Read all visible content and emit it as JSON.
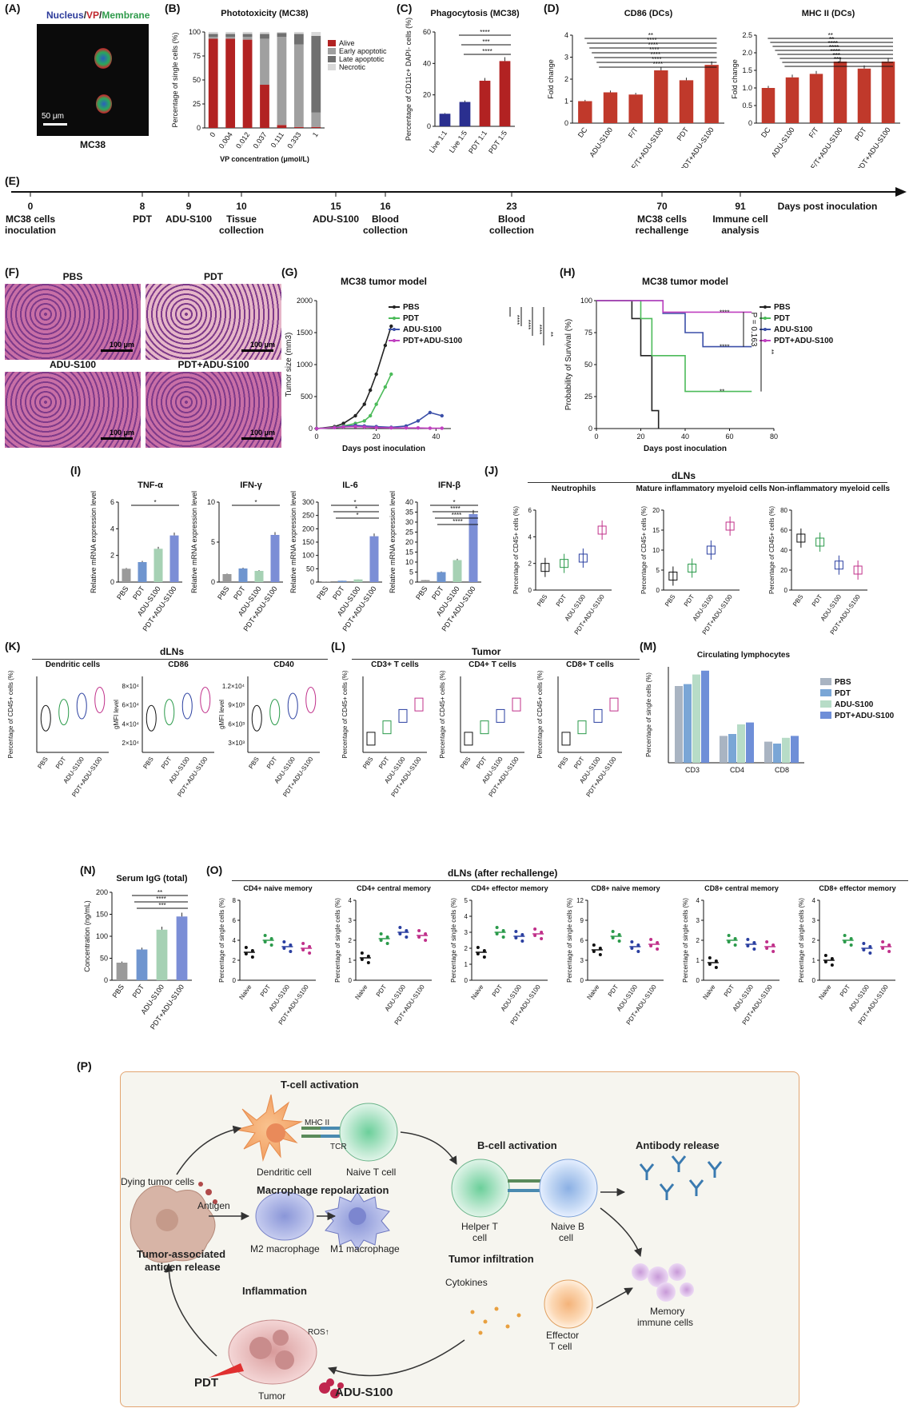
{
  "panels": {
    "A": "(A)",
    "B": "(B)",
    "C": "(C)",
    "D": "(D)",
    "E": "(E)",
    "F": "(F)",
    "G": "(G)",
    "H": "(H)",
    "I": "(I)",
    "J": "(J)",
    "K": "(K)",
    "L": "(L)",
    "M": "(M)",
    "N": "(N)",
    "O": "(O)",
    "P": "(P)"
  },
  "panelA": {
    "title_parts": [
      {
        "text": "Nucleus",
        "color": "#2b3a9a"
      },
      {
        "text": "/",
        "color": "#222"
      },
      {
        "text": "VP",
        "color": "#c0262d"
      },
      {
        "text": "/",
        "color": "#222"
      },
      {
        "text": "Membrane",
        "color": "#2e9a4a"
      }
    ],
    "scale": "50 μm",
    "caption": "MC38"
  },
  "chart_data": [
    {
      "id": "B",
      "type": "bar",
      "title": "Phototoxicity (MC38)",
      "xlabel": "VP concentration (μmol/L)",
      "ylabel": "Percentage of single cells (%)",
      "categories": [
        "0",
        "0.004",
        "0.012",
        "0.037",
        "0.111",
        "0.333",
        "1"
      ],
      "ylim": [
        0,
        100
      ],
      "yticks": [
        "0",
        "25",
        "50",
        "75",
        "100"
      ],
      "series": [
        {
          "name": "Alive",
          "color": "#b22222",
          "values": [
            93,
            93,
            92,
            45,
            3,
            1,
            1
          ]
        },
        {
          "name": "Early apoptotic",
          "color": "#a0a0a0",
          "values": [
            2,
            2,
            3,
            48,
            92,
            86,
            15
          ]
        },
        {
          "name": "Late apoptotic",
          "color": "#707070",
          "values": [
            3,
            3,
            3,
            5,
            4,
            11,
            80
          ]
        },
        {
          "name": "Necrotic",
          "color": "#d8d8d8",
          "values": [
            2,
            2,
            2,
            2,
            1,
            2,
            4
          ]
        }
      ]
    },
    {
      "id": "C",
      "type": "bar",
      "title": "Phagocytosis (MC38)",
      "ylabel": "Percentage of CD11c+ DAPI- cells (%)",
      "categories": [
        "Live 1:1",
        "Live 1:5",
        "PDT 1:1",
        "PDT 1:5"
      ],
      "values": [
        8,
        15.5,
        29,
        41.5
      ],
      "colors": [
        "#2a2f8f",
        "#2a2f8f",
        "#b22222",
        "#b22222"
      ],
      "ylim": [
        0,
        60
      ],
      "yticks": [
        "0",
        "20",
        "40",
        "60"
      ],
      "sig": [
        "****",
        "***",
        "****"
      ]
    },
    {
      "id": "D1",
      "type": "bar",
      "title": "CD86 (DCs)",
      "ylabel": "Fold change",
      "categories": [
        "DC",
        "ADU-S100",
        "F/T",
        "F/T+ADU-S100",
        "PDT",
        "PDT+ADU-S100"
      ],
      "values": [
        1.0,
        1.4,
        1.3,
        2.4,
        1.95,
        2.65
      ],
      "ylim": [
        0,
        4
      ],
      "yticks": [
        "0",
        "1",
        "2",
        "3",
        "4"
      ],
      "sig": [
        "**",
        "****",
        "****",
        "****",
        "****",
        "****",
        "****"
      ]
    },
    {
      "id": "D2",
      "type": "bar",
      "title": "MHC II (DCs)",
      "ylabel": "Fold change",
      "categories": [
        "DC",
        "ADU-S100",
        "F/T",
        "F/T+ADU-S100",
        "PDT",
        "PDT+ADU-S100"
      ],
      "values": [
        1.0,
        1.3,
        1.4,
        1.75,
        1.55,
        1.75
      ],
      "ylim": [
        0,
        2.5
      ],
      "yticks": [
        "0",
        "0.5",
        "1.0",
        "1.5",
        "2.0",
        "2.5"
      ],
      "sig": [
        "**",
        "**",
        "****",
        "****",
        "****",
        "***",
        "***",
        "*"
      ]
    },
    {
      "id": "G",
      "type": "line",
      "title": "MC38 tumor model",
      "xlabel": "Days post inoculation",
      "ylabel": "Tumor size (mm3)",
      "xlim": [
        0,
        45
      ],
      "ylim": [
        0,
        2000
      ],
      "xticks": [
        "0",
        "20",
        "40"
      ],
      "yticks": [
        "0",
        "500",
        "1000",
        "1500",
        "2000"
      ],
      "series": [
        {
          "name": "PBS",
          "color": "#222222",
          "x": [
            0,
            6,
            9,
            13,
            16,
            18,
            20,
            23,
            25
          ],
          "y": [
            0,
            30,
            80,
            200,
            380,
            600,
            850,
            1300,
            1600
          ]
        },
        {
          "name": "PDT",
          "color": "#4cbb5a",
          "x": [
            0,
            6,
            9,
            13,
            16,
            18,
            20,
            23,
            25
          ],
          "y": [
            0,
            20,
            40,
            80,
            120,
            200,
            380,
            650,
            850
          ]
        },
        {
          "name": "ADU-S100",
          "color": "#3b4fa8",
          "x": [
            0,
            6,
            9,
            13,
            16,
            20,
            25,
            30,
            34,
            38,
            42
          ],
          "y": [
            0,
            15,
            30,
            50,
            40,
            30,
            20,
            40,
            120,
            250,
            200
          ]
        },
        {
          "name": "PDT+ADU-S100",
          "color": "#c040c0",
          "x": [
            0,
            6,
            9,
            13,
            16,
            20,
            25,
            30,
            34,
            38,
            42
          ],
          "y": [
            0,
            15,
            25,
            30,
            25,
            15,
            10,
            10,
            10,
            5,
            5
          ]
        }
      ],
      "sig": [
        "****",
        "****",
        "****",
        "**"
      ]
    },
    {
      "id": "H",
      "type": "line",
      "title": "MC38 tumor model",
      "xlabel": "Days post inoculation",
      "ylabel": "Probability of Survival (%)",
      "xlim": [
        0,
        80
      ],
      "ylim": [
        0,
        100
      ],
      "xticks": [
        "0",
        "20",
        "40",
        "60",
        "80"
      ],
      "yticks": [
        "0",
        "25",
        "50",
        "75",
        "100"
      ],
      "series": [
        {
          "name": "PBS",
          "color": "#222222",
          "x": [
            0,
            16,
            16,
            20,
            20,
            25,
            25,
            28,
            28
          ],
          "y": [
            100,
            100,
            86,
            86,
            57,
            57,
            14,
            14,
            0
          ]
        },
        {
          "name": "PDT",
          "color": "#4cbb5a",
          "x": [
            0,
            20,
            20,
            25,
            25,
            40,
            40,
            70
          ],
          "y": [
            100,
            100,
            86,
            86,
            57,
            57,
            29,
            29
          ]
        },
        {
          "name": "ADU-S100",
          "color": "#3b4fa8",
          "x": [
            0,
            30,
            30,
            40,
            40,
            48,
            48,
            70
          ],
          "y": [
            100,
            100,
            90,
            90,
            75,
            75,
            64,
            64
          ]
        },
        {
          "name": "PDT+ADU-S100",
          "color": "#c040c0",
          "x": [
            0,
            30,
            30,
            70
          ],
          "y": [
            100,
            100,
            91,
            91
          ]
        }
      ],
      "annot": [
        "****",
        "****",
        "**",
        "P = 0.163",
        "**"
      ]
    },
    {
      "id": "I1",
      "type": "bar",
      "title": "TNF-α",
      "ylabel": "Relative mRNA expression level",
      "categories": [
        "PBS",
        "PDT",
        "ADU-S100",
        "PDT+ADU-S100"
      ],
      "values": [
        1.0,
        1.5,
        2.5,
        3.5
      ],
      "ylim": [
        0,
        6
      ],
      "yticks": [
        "0",
        "2",
        "4",
        "6"
      ],
      "sig": [
        "*"
      ]
    },
    {
      "id": "I2",
      "type": "bar",
      "title": "IFN-γ",
      "ylabel": "Relative mRNA expression level",
      "categories": [
        "PBS",
        "PDT",
        "ADU-S100",
        "PDT+ADU-S100"
      ],
      "values": [
        1.0,
        1.7,
        1.4,
        5.9
      ],
      "ylim": [
        0,
        10
      ],
      "yticks": [
        "0",
        "5",
        "10"
      ],
      "sig": [
        "*"
      ]
    },
    {
      "id": "I3",
      "type": "bar",
      "title": "IL-6",
      "ylabel": "Relative mRNA expression level",
      "categories": [
        "PBS",
        "PDT",
        "ADU-S100",
        "PDT+ADU-S100"
      ],
      "values": [
        2,
        5,
        10,
        172
      ],
      "ylim": [
        0,
        300
      ],
      "yticks": [
        "0",
        "50",
        "100",
        "150",
        "200",
        "250",
        "300"
      ],
      "sig": [
        "*",
        "*",
        "*"
      ]
    },
    {
      "id": "I4",
      "type": "bar",
      "title": "IFN-β",
      "ylabel": "Relative mRNA expression level",
      "categories": [
        "PBS",
        "PDT",
        "ADU-S100",
        "PDT+ADU-S100"
      ],
      "values": [
        1,
        5,
        11,
        34
      ],
      "ylim": [
        0,
        40
      ],
      "yticks": [
        "0",
        "5",
        "10",
        "15",
        "20",
        "25",
        "30",
        "35",
        "40"
      ],
      "sig": [
        "*",
        "****",
        "****",
        "****"
      ]
    },
    {
      "id": "N",
      "type": "bar",
      "title": "Serum IgG (total)",
      "ylabel": "Concentration (ng/mL)",
      "categories": [
        "PBS",
        "PDT",
        "ADU-S100",
        "PDT+ADU-S100"
      ],
      "values": [
        40,
        70,
        115,
        145
      ],
      "ylim": [
        0,
        200
      ],
      "yticks": [
        "0",
        "50",
        "100",
        "150",
        "200"
      ],
      "sig": [
        "**",
        "****",
        "***"
      ]
    }
  ],
  "panelE": {
    "axis_label": "Days post inoculation",
    "events": [
      {
        "day": "0",
        "label1": "MC38 cells",
        "label2": "inoculation"
      },
      {
        "day": "8",
        "label1": "PDT",
        "label2": ""
      },
      {
        "day": "9",
        "label1": "ADU-S100",
        "label2": ""
      },
      {
        "day": "10",
        "label1": "Tissue",
        "label2": "collection"
      },
      {
        "day": "15",
        "label1": "ADU-S100",
        "label2": ""
      },
      {
        "day": "16",
        "label1": "Blood",
        "label2": "collection"
      },
      {
        "day": "23",
        "label1": "Blood",
        "label2": "collection"
      },
      {
        "day": "70",
        "label1": "MC38 cells",
        "label2": "rechallenge"
      },
      {
        "day": "91",
        "label1": "Immune cell",
        "label2": "analysis"
      }
    ]
  },
  "panelF": {
    "tiles": [
      {
        "label": "PBS",
        "scale": "100 μm"
      },
      {
        "label": "PDT",
        "scale": "100 μm"
      },
      {
        "label": "ADU-S100",
        "scale": "100 μm"
      },
      {
        "label": "PDT+ADU-S100",
        "scale": "100 μm"
      }
    ]
  },
  "panelJ": {
    "header": "dLNs",
    "subs": [
      {
        "title": "Neutrophils",
        "ylabel": "Percentage of CD45+ cells (%)",
        "yticks": [
          "0",
          "2",
          "4",
          "6"
        ]
      },
      {
        "title": "Mature inflammatory myeloid cells",
        "ylabel": "Percentage of CD45+ cells (%)",
        "yticks": [
          "0",
          "5",
          "10",
          "15",
          "20"
        ]
      },
      {
        "title": "Non-inflammatory myeloid cells",
        "ylabel": "Percentage of CD45+ cells (%)",
        "yticks": [
          "0",
          "20",
          "40",
          "60",
          "80"
        ]
      }
    ]
  },
  "panelK": {
    "header": "dLNs",
    "subs": [
      {
        "title": "Dendritic cells",
        "ylabel": "Percentage of CD45+ cells (%)"
      },
      {
        "title": "CD86",
        "ylabel": "gMFI level",
        "yticks": [
          "2×10⁴",
          "4×10⁴",
          "6×10⁴",
          "8×10⁴"
        ]
      },
      {
        "title": "CD40",
        "ylabel": "gMFI level",
        "yticks": [
          "3×10³",
          "6×10³",
          "9×10³",
          "1.2×10⁴"
        ]
      }
    ]
  },
  "panelL": {
    "header": "Tumor",
    "subs": [
      {
        "title": "CD3+ T cells"
      },
      {
        "title": "CD4+ T cells"
      },
      {
        "title": "CD8+ T cells"
      }
    ]
  },
  "panelM": {
    "title": "Circulating lymphocytes",
    "ylabel": "Percentage of single cells (%)",
    "groups": [
      "CD3",
      "CD4",
      "CD8"
    ],
    "legend": [
      {
        "name": "PBS",
        "color": "#a9b4c2"
      },
      {
        "name": "PDT",
        "color": "#7aa6d6"
      },
      {
        "name": "ADU-S100",
        "color": "#b7dcc7"
      },
      {
        "name": "PDT+ADU-S100",
        "color": "#6f8fd8"
      }
    ]
  },
  "panelO": {
    "header": "dLNs (after rechallenge)",
    "subs": [
      {
        "title": "CD4+ naive memory",
        "yticks": [
          "0",
          "2",
          "4",
          "6",
          "8"
        ]
      },
      {
        "title": "CD4+ central memory",
        "yticks": [
          "0",
          "1",
          "2",
          "3",
          "4"
        ]
      },
      {
        "title": "CD4+ effector memory",
        "yticks": [
          "0",
          "1",
          "2",
          "3",
          "4",
          "5"
        ]
      },
      {
        "title": "CD8+ naive memory",
        "yticks": [
          "0",
          "3",
          "6",
          "9",
          "12"
        ]
      },
      {
        "title": "CD8+ central memory",
        "yticks": [
          "0",
          "1",
          "2",
          "3",
          "4"
        ]
      },
      {
        "title": "CD8+ effector memory",
        "yticks": [
          "0",
          "1",
          "2",
          "3",
          "4"
        ]
      }
    ],
    "groups": [
      "Naive",
      "PDT",
      "ADU-S100",
      "PDT+ADU-S100"
    ],
    "ylabel": "Percentage of single cells (%)"
  },
  "panelP": {
    "t_cell_activation": "T-cell activation",
    "mhc": "MHC II",
    "tcr": "TCR",
    "dendritic": "Dendritic cell",
    "naive_t": "Naive T cell",
    "dying": "Dying tumor cells",
    "antigen": "Antigen",
    "macrophage_repol": "Macrophage repolarization",
    "m2": "M2 macrophage",
    "m1": "M1 macrophage",
    "taa1": "Tumor-associated",
    "taa2": "antigen release",
    "inflammation": "Inflammation",
    "ros": "ROS↑",
    "pdt": "PDT",
    "tumor": "Tumor",
    "adu": "ADU-S100",
    "b_cell_activation": "B-cell activation",
    "helper_t1": "Helper T",
    "helper_t2": "cell",
    "naive_b1": "Naive B",
    "naive_b2": "cell",
    "antibody": "Antibody release",
    "tumor_infil": "Tumor infiltration",
    "cytokines": "Cytokines",
    "effector1": "Effector",
    "effector2": "T cell",
    "memory1": "Memory",
    "memory2": "immune cells"
  }
}
